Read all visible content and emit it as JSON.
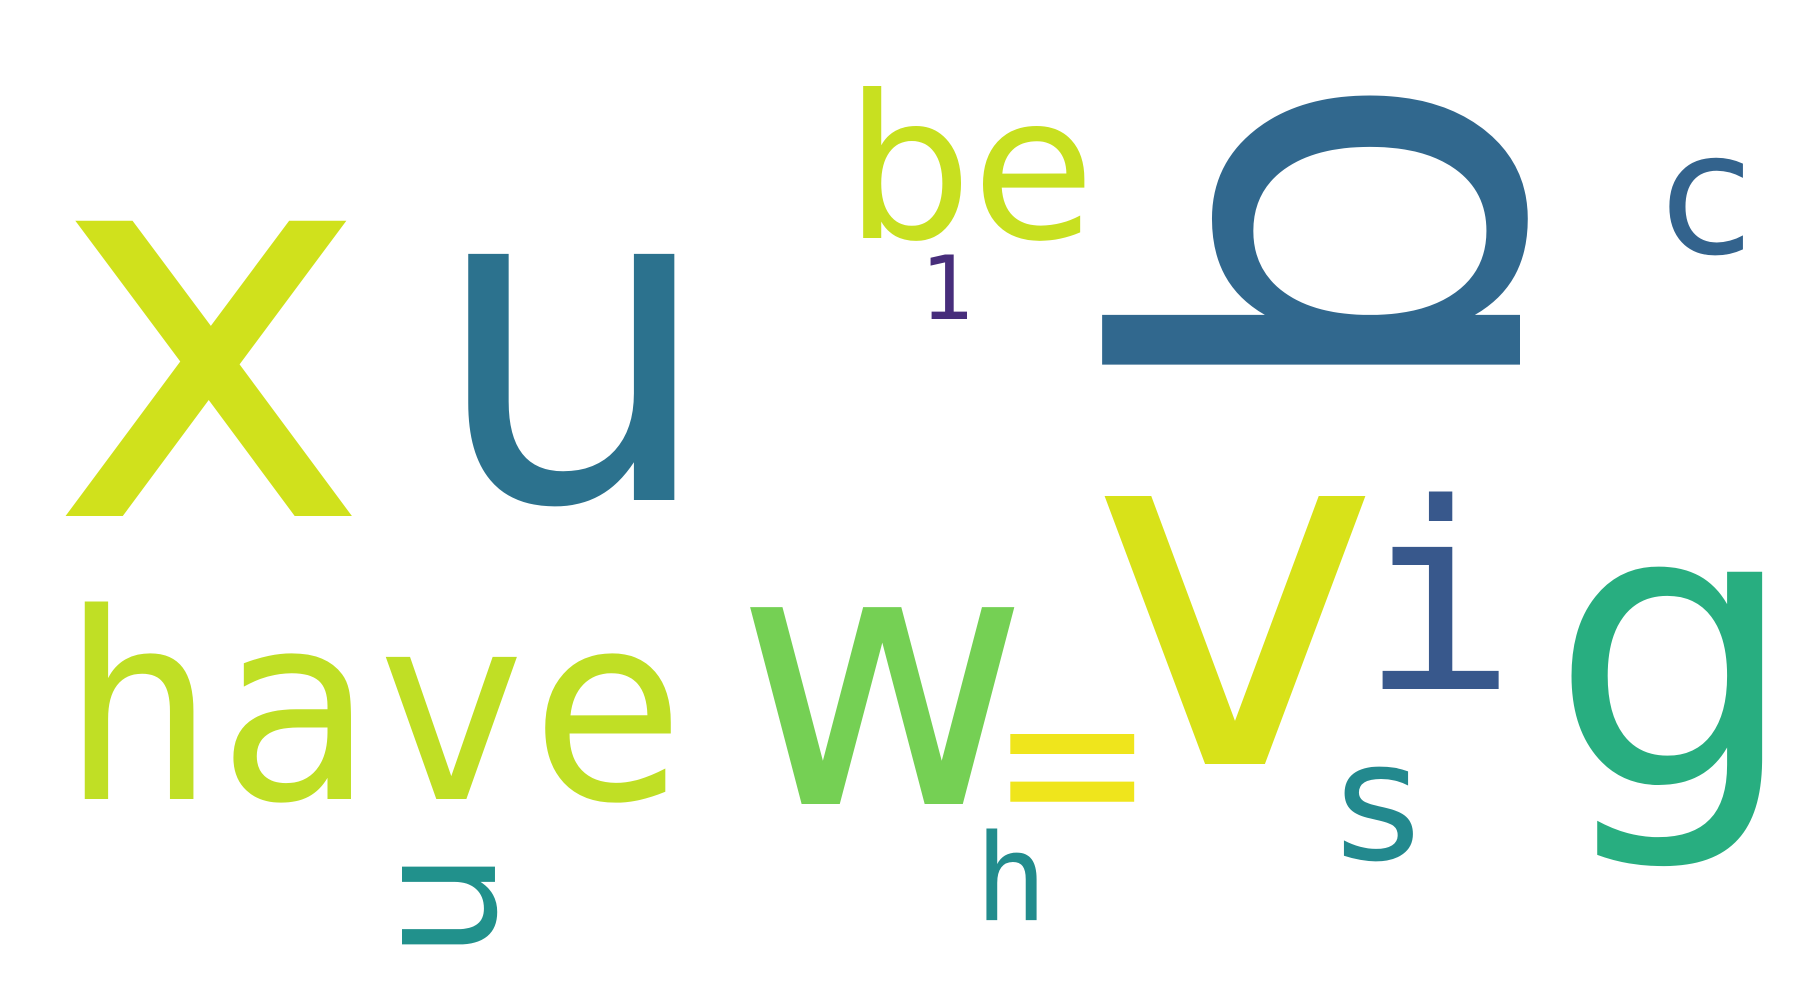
{
  "words": [
    {
      "text": "x",
      "color": "#d0e11c",
      "rotated": false
    },
    {
      "text": "u",
      "color": "#2c728e",
      "rotated": false
    },
    {
      "text": "b",
      "color": "#31688e",
      "rotated": true
    },
    {
      "text": "be",
      "color": "#c8e020",
      "rotated": false
    },
    {
      "text": "c",
      "color": "#33638d",
      "rotated": false
    },
    {
      "text": "1",
      "color": "#472d7b",
      "rotated": false
    },
    {
      "text": "v",
      "color": "#d8e219",
      "rotated": false
    },
    {
      "text": "i",
      "color": "#38588c",
      "rotated": false
    },
    {
      "text": "g",
      "color": "#28ae80",
      "rotated": false
    },
    {
      "text": "have",
      "color": "#c0df25",
      "rotated": false
    },
    {
      "text": "w",
      "color": "#75d054",
      "rotated": false
    },
    {
      "text": "=",
      "color": "#efe51c",
      "rotated": false
    },
    {
      "text": "n",
      "color": "#21918c",
      "rotated": true
    },
    {
      "text": "h",
      "color": "#228c8d",
      "rotated": false
    },
    {
      "text": "s",
      "color": "#23898e",
      "rotated": false
    }
  ]
}
